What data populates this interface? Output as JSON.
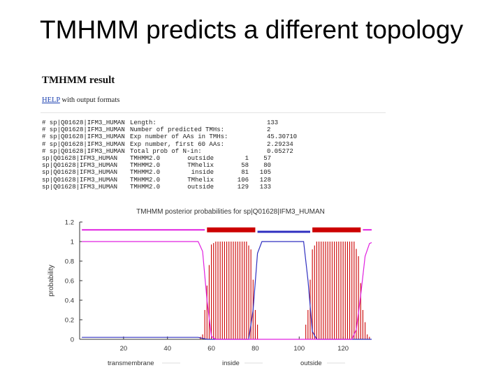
{
  "slide": {
    "title": "TMHMM predicts a different topology"
  },
  "page": {
    "heading": "TMHMM result",
    "help_link": "HELP",
    "help_suffix": " with output formats"
  },
  "summary_lines": [
    {
      "id": "# sp|Q01628|IFM3_HUMAN",
      "text": "Length:",
      "value": "133"
    },
    {
      "id": "# sp|Q01628|IFM3_HUMAN",
      "text": "Number of predicted TMHs:",
      "value": "2"
    },
    {
      "id": "# sp|Q01628|IFM3_HUMAN",
      "text": "Exp number of AAs in TMHs:",
      "value": "45.30710"
    },
    {
      "id": "# sp|Q01628|IFM3_HUMAN",
      "text": "Exp number, first 60 AAs:",
      "value": "2.29234"
    },
    {
      "id": "# sp|Q01628|IFM3_HUMAN",
      "text": "Total prob of N-in:",
      "value": "0.05272"
    }
  ],
  "predictions": [
    {
      "id": "sp|Q01628|IFM3_HUMAN",
      "method": "TMHMM2.0",
      "location": "outside",
      "start": "1",
      "end": "57"
    },
    {
      "id": "sp|Q01628|IFM3_HUMAN",
      "method": "TMHMM2.0",
      "location": "TMhelix",
      "start": "58",
      "end": "80"
    },
    {
      "id": "sp|Q01628|IFM3_HUMAN",
      "method": "TMHMM2.0",
      "location": "inside",
      "start": "81",
      "end": "105"
    },
    {
      "id": "sp|Q01628|IFM3_HUMAN",
      "method": "TMHMM2.0",
      "location": "TMhelix",
      "start": "106",
      "end": "128"
    },
    {
      "id": "sp|Q01628|IFM3_HUMAN",
      "method": "TMHMM2.0",
      "location": "outside",
      "start": "129",
      "end": "133"
    }
  ],
  "colors": {
    "tm": "#cc0000",
    "inside": "#3030c0",
    "outside": "#e020e0",
    "axis": "#333333",
    "legend_line": "#dddddd"
  },
  "chart_data": {
    "type": "line",
    "title": "TMHMM posterior probabilities for sp|Q01628|IFM3_HUMAN",
    "xlabel": "",
    "ylabel": "probability",
    "xlim": [
      0,
      133
    ],
    "ylim": [
      0,
      1.2
    ],
    "xticks": [
      20,
      40,
      60,
      80,
      100,
      120
    ],
    "yticks": [
      0,
      0.2,
      0.4,
      0.6,
      0.8,
      1,
      1.2
    ],
    "topology_bars": [
      {
        "kind": "outside",
        "start": 1,
        "end": 57,
        "level": 1.12
      },
      {
        "kind": "tm",
        "start": 58,
        "end": 80,
        "level": 1.12
      },
      {
        "kind": "inside",
        "start": 81,
        "end": 105,
        "level": 1.1
      },
      {
        "kind": "tm",
        "start": 106,
        "end": 128,
        "level": 1.12
      },
      {
        "kind": "outside",
        "start": 129,
        "end": 133,
        "level": 1.12
      }
    ],
    "series": [
      {
        "name": "transmembrane",
        "points": [
          [
            1,
            0
          ],
          [
            54,
            0
          ],
          [
            56,
            0.05
          ],
          [
            58,
            0.55
          ],
          [
            60,
            0.97
          ],
          [
            62,
            1
          ],
          [
            76,
            1
          ],
          [
            78,
            0.92
          ],
          [
            80,
            0.3
          ],
          [
            82,
            0
          ],
          [
            102,
            0
          ],
          [
            104,
            0.3
          ],
          [
            106,
            0.92
          ],
          [
            108,
            1
          ],
          [
            125,
            1
          ],
          [
            127,
            0.85
          ],
          [
            129,
            0.3
          ],
          [
            131,
            0.05
          ],
          [
            133,
            0
          ]
        ]
      },
      {
        "name": "inside",
        "points": [
          [
            1,
            0.02
          ],
          [
            54,
            0.02
          ],
          [
            56,
            0.01
          ],
          [
            58,
            0
          ],
          [
            77,
            0
          ],
          [
            79,
            0.3
          ],
          [
            81,
            0.88
          ],
          [
            83,
            1
          ],
          [
            102,
            1
          ],
          [
            104,
            0.6
          ],
          [
            106,
            0.08
          ],
          [
            108,
            0
          ],
          [
            133,
            0
          ]
        ]
      },
      {
        "name": "outside",
        "points": [
          [
            1,
            1
          ],
          [
            54,
            1
          ],
          [
            56,
            0.9
          ],
          [
            58,
            0.4
          ],
          [
            60,
            0.03
          ],
          [
            62,
            0
          ],
          [
            124,
            0
          ],
          [
            126,
            0.1
          ],
          [
            128,
            0.45
          ],
          [
            130,
            0.85
          ],
          [
            132,
            0.98
          ],
          [
            133,
            0.99
          ]
        ]
      }
    ],
    "legend": [
      "transmembrane",
      "inside",
      "outside"
    ],
    "legend_placement": "bottom"
  }
}
